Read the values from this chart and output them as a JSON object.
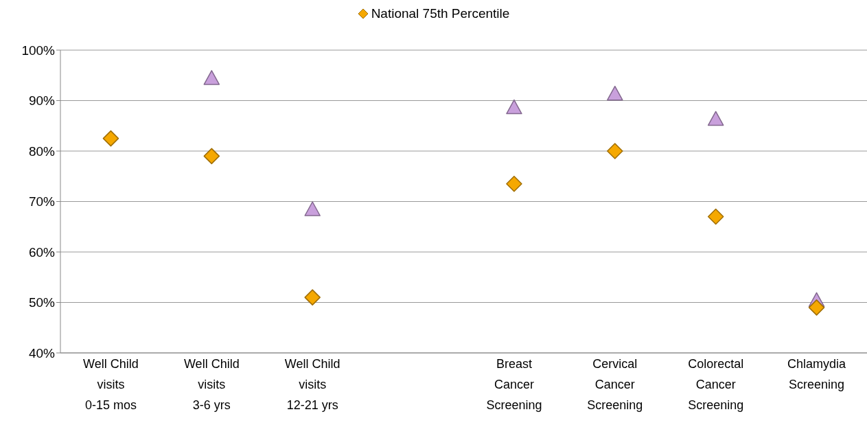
{
  "chart_data": {
    "type": "scatter",
    "categories": [
      "Well Child\nvisits\n0-15 mos",
      "Well Child\nvisits\n3-6 yrs",
      "Well Child\nvisits\n12-21 yrs",
      null,
      "Breast\nCancer\nScreening",
      "Cervical\nCancer\nScreening",
      "Colorectal\nCancer\nScreening",
      "Chlamydia\nScreening"
    ],
    "series": [
      {
        "color": "#c9a0dc",
        "marker": "triangle",
        "values": [
          null,
          94.3,
          68.3,
          null,
          88.5,
          91.2,
          86.2,
          50.3
        ]
      },
      {
        "name": "National 75th Percentile",
        "color": "#f5a800",
        "marker": "diamond",
        "values": [
          82.5,
          79,
          51,
          null,
          73.5,
          80,
          67,
          49
        ]
      }
    ],
    "ylim": [
      40,
      100
    ],
    "yticks": [
      {
        "value": 40,
        "label": "40%"
      },
      {
        "value": 50,
        "label": "50%"
      },
      {
        "value": 60,
        "label": "60%"
      },
      {
        "value": 70,
        "label": "70%"
      },
      {
        "value": 80,
        "label": "80%"
      },
      {
        "value": 90,
        "label": "90%"
      },
      {
        "value": 100,
        "label": "100%"
      }
    ],
    "grid": "y",
    "legend": "top"
  }
}
